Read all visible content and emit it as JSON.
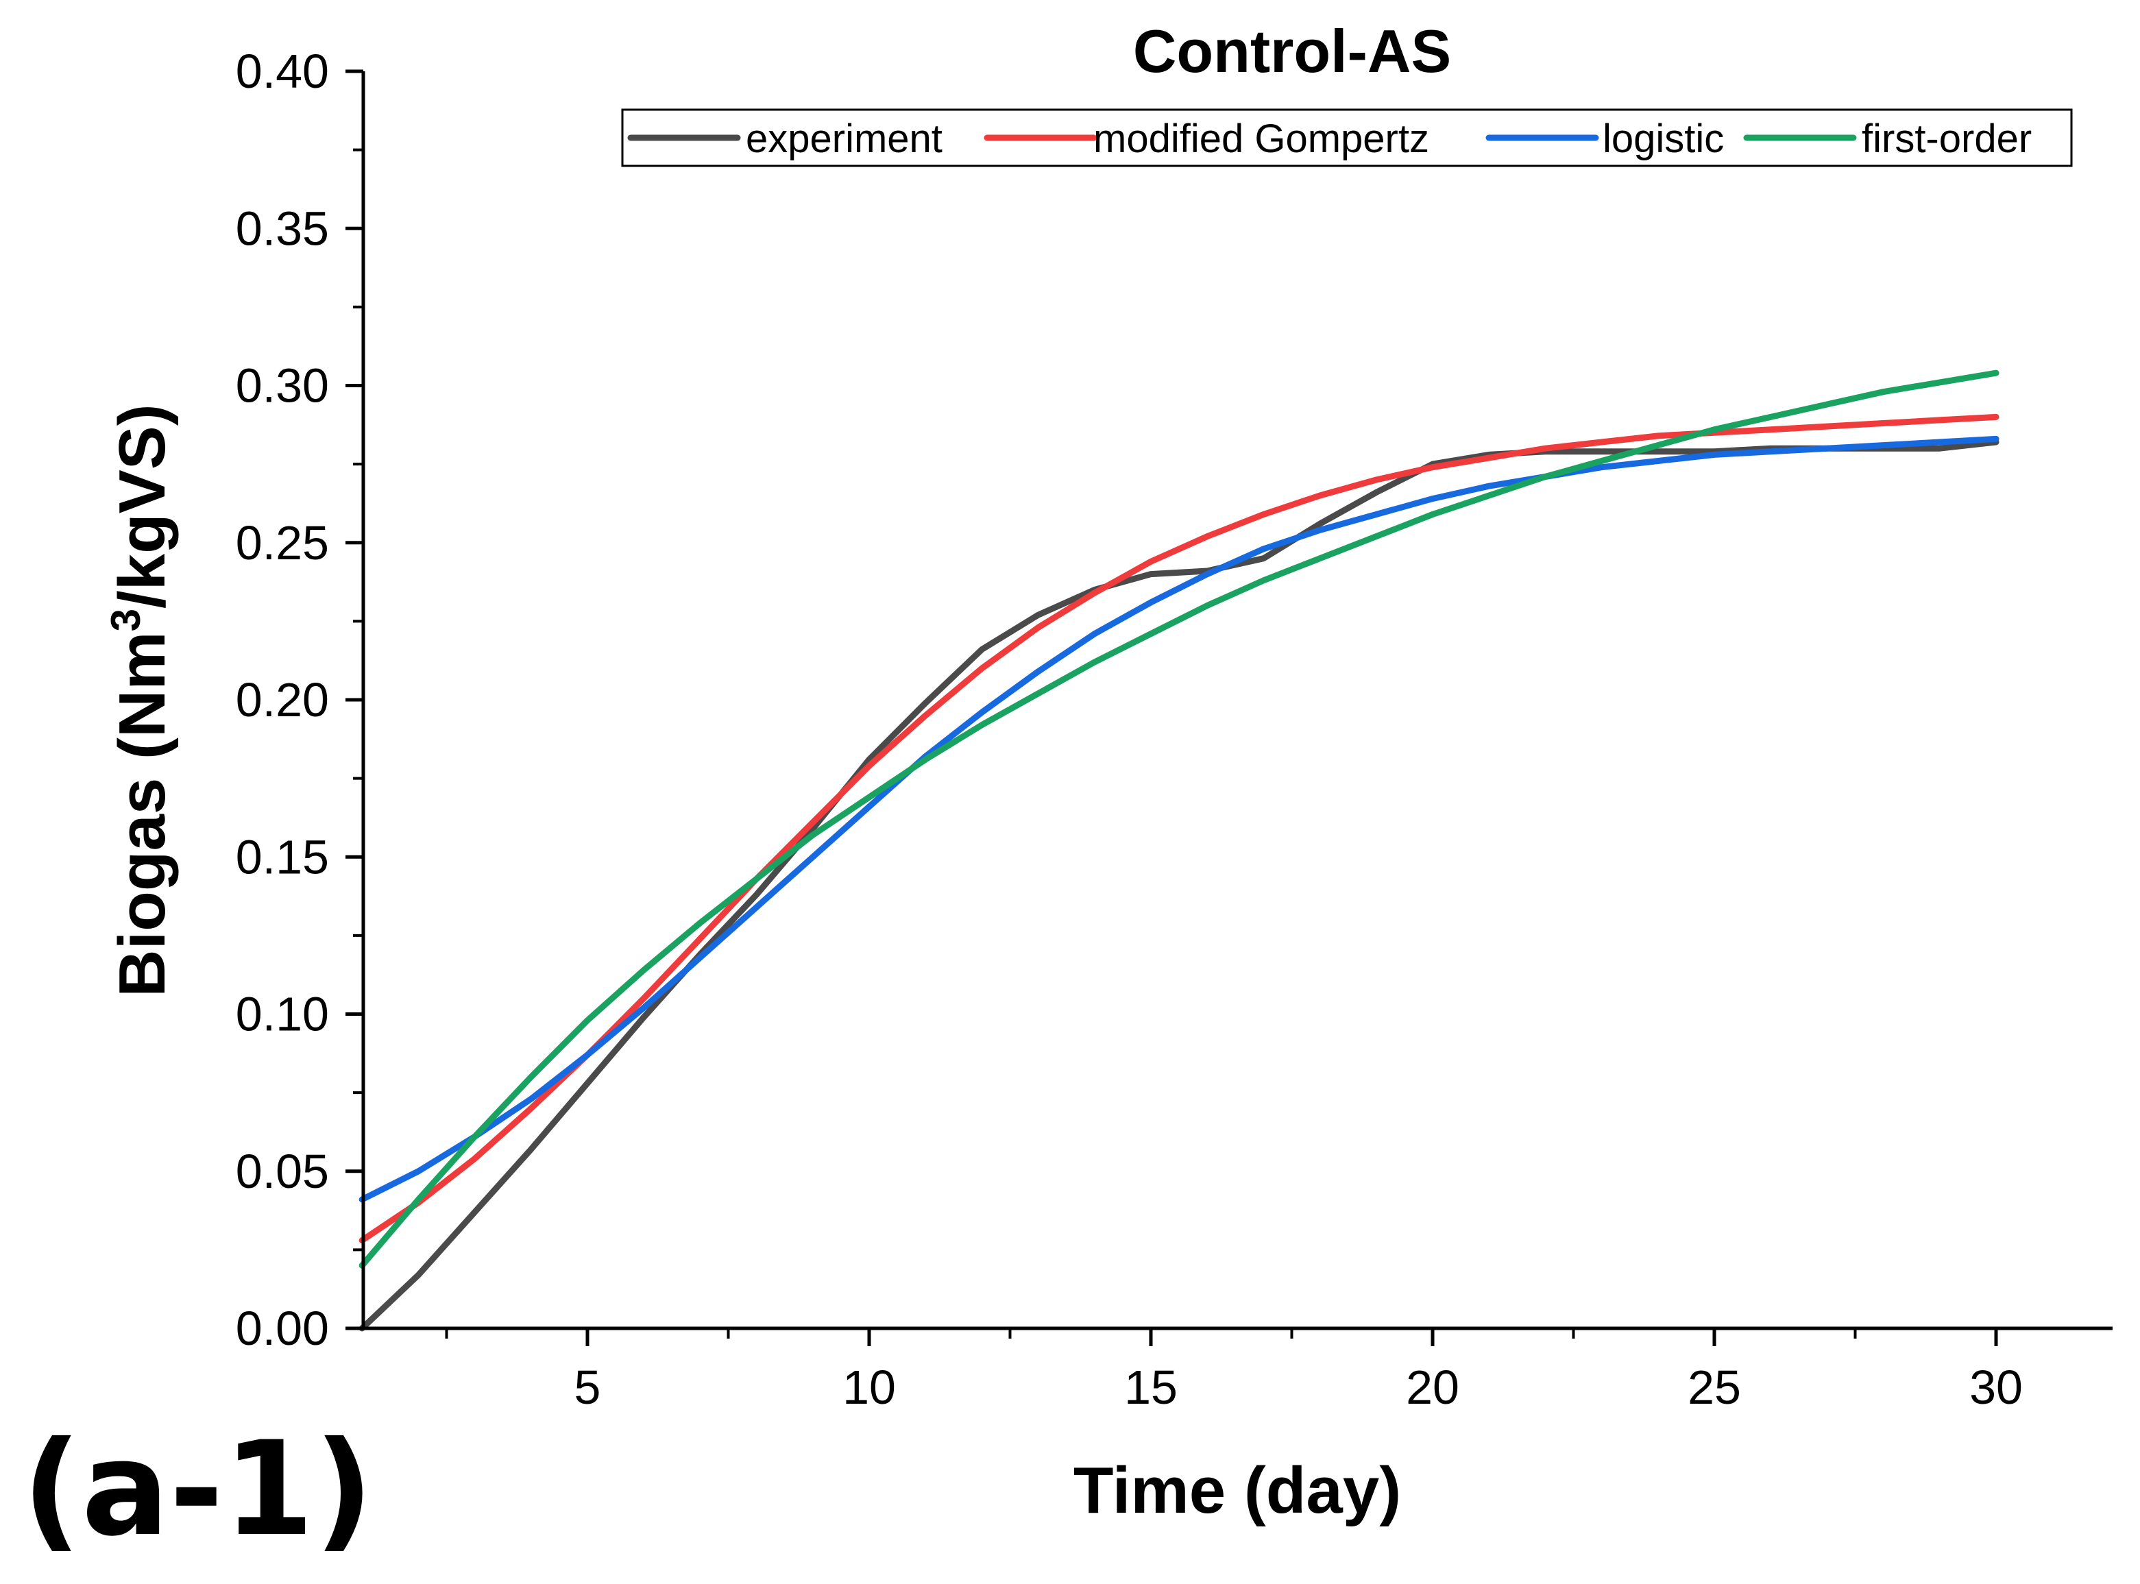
{
  "chart_data": {
    "type": "line",
    "title": "Control-AS",
    "xlabel": "Time (day)",
    "ylabel_main": "Biogas (Nm",
    "ylabel_sup": "3",
    "ylabel_end": "/kgVS)",
    "panel_label": "(a-1)",
    "xlim": [
      1,
      31
    ],
    "ylim": [
      0,
      0.4
    ],
    "xticks": [
      5,
      10,
      15,
      20,
      25,
      30
    ],
    "yticks": [
      0,
      0.05,
      0.1,
      0.15,
      0.2,
      0.25,
      0.3,
      0.35,
      0.4
    ],
    "xtick_labels": [
      "5",
      "10",
      "15",
      "20",
      "25",
      "30"
    ],
    "ytick_labels": [
      "0.00",
      "0.05",
      "0.10",
      "0.15",
      "0.20",
      "0.25",
      "0.30",
      "0.35",
      "0.40"
    ],
    "legend_position": "top",
    "series": [
      {
        "name": "experiment",
        "color": "#4a4a4a",
        "x": [
          1,
          2,
          3,
          4,
          5,
          6,
          7,
          8,
          9,
          10,
          11,
          12,
          13,
          14,
          15,
          16,
          17,
          18,
          19,
          20,
          21,
          22,
          23,
          24,
          25,
          26,
          27,
          28,
          29,
          30
        ],
        "values": [
          0.0,
          0.017,
          0.037,
          0.057,
          0.078,
          0.099,
          0.119,
          0.138,
          0.159,
          0.181,
          0.199,
          0.216,
          0.227,
          0.235,
          0.24,
          0.241,
          0.245,
          0.256,
          0.266,
          0.275,
          0.278,
          0.279,
          0.279,
          0.279,
          0.279,
          0.28,
          0.28,
          0.28,
          0.28,
          0.282
        ]
      },
      {
        "name": "modified Gompertz",
        "color": "#ef3b3b",
        "x": [
          1,
          2,
          3,
          4,
          5,
          6,
          7,
          8,
          9,
          10,
          11,
          12,
          13,
          14,
          15,
          16,
          17,
          18,
          19,
          20,
          21,
          22,
          23,
          24,
          25,
          26,
          27,
          28,
          29,
          30
        ],
        "values": [
          0.028,
          0.04,
          0.054,
          0.07,
          0.087,
          0.105,
          0.124,
          0.143,
          0.161,
          0.179,
          0.195,
          0.21,
          0.223,
          0.234,
          0.244,
          0.252,
          0.259,
          0.265,
          0.27,
          0.274,
          0.277,
          0.28,
          0.282,
          0.284,
          0.285,
          0.286,
          0.287,
          0.288,
          0.289,
          0.29
        ]
      },
      {
        "name": "logistic",
        "color": "#1769e0",
        "x": [
          1,
          2,
          3,
          4,
          5,
          6,
          7,
          8,
          9,
          10,
          11,
          12,
          13,
          14,
          15,
          16,
          17,
          18,
          19,
          20,
          21,
          22,
          23,
          24,
          25,
          26,
          27,
          28,
          29,
          30
        ],
        "values": [
          0.041,
          0.05,
          0.061,
          0.073,
          0.087,
          0.102,
          0.118,
          0.134,
          0.15,
          0.166,
          0.182,
          0.196,
          0.209,
          0.221,
          0.231,
          0.24,
          0.248,
          0.254,
          0.259,
          0.264,
          0.268,
          0.271,
          0.274,
          0.276,
          0.278,
          0.279,
          0.28,
          0.281,
          0.282,
          0.283
        ]
      },
      {
        "name": "first-order",
        "color": "#1aa260",
        "x": [
          1,
          2,
          3,
          4,
          5,
          6,
          7,
          8,
          9,
          10,
          11,
          12,
          13,
          14,
          15,
          16,
          17,
          18,
          19,
          20,
          21,
          22,
          23,
          24,
          25,
          26,
          27,
          28,
          29,
          30
        ],
        "values": [
          0.02,
          0.041,
          0.061,
          0.08,
          0.098,
          0.114,
          0.129,
          0.143,
          0.157,
          0.169,
          0.181,
          0.192,
          0.202,
          0.212,
          0.221,
          0.23,
          0.238,
          0.245,
          0.252,
          0.259,
          0.265,
          0.271,
          0.276,
          0.281,
          0.286,
          0.29,
          0.294,
          0.298,
          0.301,
          0.304
        ]
      }
    ]
  }
}
